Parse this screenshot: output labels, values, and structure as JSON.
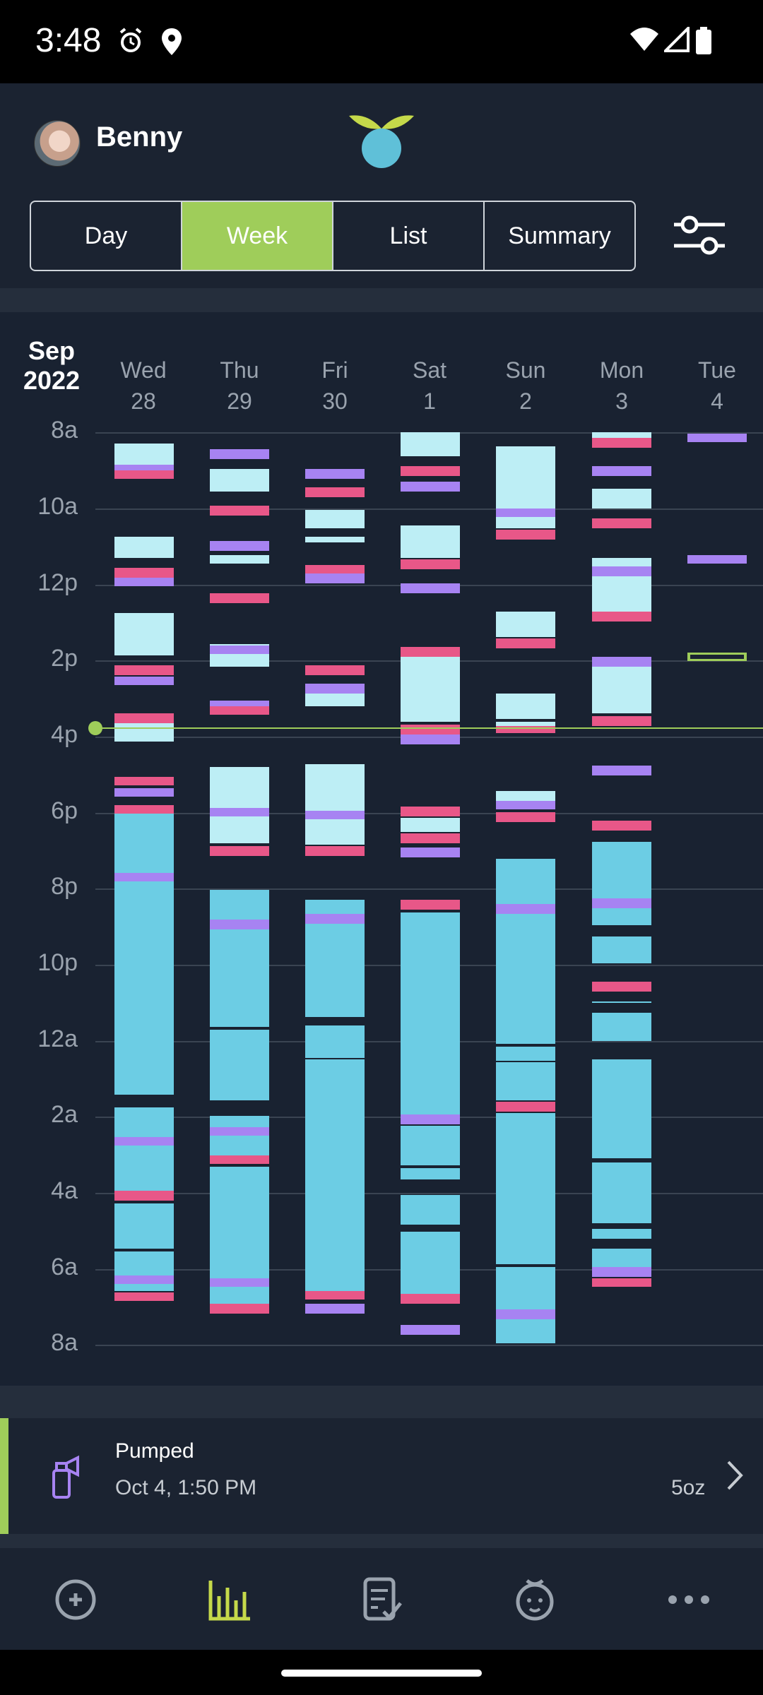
{
  "status_bar": {
    "time": "3:48",
    "icons": [
      "alarm-icon",
      "location-icon",
      "wifi-icon",
      "signal-icon",
      "battery-icon"
    ]
  },
  "header": {
    "child_name": "Benny",
    "logo": "sprout-logo"
  },
  "tabs": [
    {
      "label": "Day",
      "active": false
    },
    {
      "label": "Week",
      "active": true
    },
    {
      "label": "List",
      "active": false
    },
    {
      "label": "Summary",
      "active": false
    }
  ],
  "chart": {
    "month": "Sep",
    "year": "2022",
    "days": [
      {
        "dow": "Wed",
        "date": "28"
      },
      {
        "dow": "Thu",
        "date": "29"
      },
      {
        "dow": "Fri",
        "date": "30"
      },
      {
        "dow": "Sat",
        "date": "1"
      },
      {
        "dow": "Sun",
        "date": "2"
      },
      {
        "dow": "Mon",
        "date": "3"
      },
      {
        "dow": "Tue",
        "date": "4"
      }
    ],
    "hour_labels": [
      "8a",
      "10a",
      "12p",
      "2p",
      "4p",
      "6p",
      "8p",
      "10p",
      "12a",
      "2a",
      "4a",
      "6a",
      "8a"
    ],
    "legend_colors": {
      "sleep_short": "#bdeef5",
      "sleep_long": "#6ccde4",
      "feeding": "#e85788",
      "diaper": "#a783f2",
      "pumping": "#9fcd5a"
    }
  },
  "last_event": {
    "title": "Pumped",
    "time": "Oct 4, 1:50 PM",
    "amount": "5oz",
    "icon": "pump-bottle-icon"
  },
  "bottom_nav": [
    {
      "name": "add-icon",
      "active": false
    },
    {
      "name": "chart-icon",
      "active": true
    },
    {
      "name": "log-icon",
      "active": false
    },
    {
      "name": "baby-icon",
      "active": false
    },
    {
      "name": "more-icon",
      "active": false
    }
  ]
}
